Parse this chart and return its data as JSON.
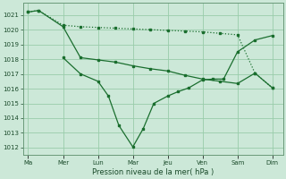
{
  "xlabel": "Pression niveau de la mer( hPa )",
  "bg_color": "#cce8d8",
  "grid_color": "#99ccaa",
  "line_color": "#1a6e2e",
  "ylim": [
    1011.5,
    1021.8
  ],
  "yticks": [
    1012,
    1013,
    1014,
    1015,
    1016,
    1017,
    1018,
    1019,
    1020,
    1021
  ],
  "xtick_labels": [
    "Ma",
    "Mer",
    "Lun",
    "Mar",
    "Jeu",
    "Ven",
    "Sam",
    "Dim"
  ],
  "xtick_positions": [
    0,
    1,
    2,
    3,
    4,
    5,
    6,
    7
  ],
  "xlim": [
    -0.15,
    7.3
  ],
  "line1_x": [
    0,
    0.3,
    1,
    1.5,
    2,
    2.5,
    3,
    3.5,
    4,
    4.5,
    5,
    5.5,
    6,
    6.5,
    7
  ],
  "line1_y": [
    1021.2,
    1021.3,
    1020.3,
    1020.2,
    1020.15,
    1020.1,
    1020.05,
    1020.0,
    1019.95,
    1019.9,
    1019.85,
    1019.75,
    1019.65,
    1017.05,
    1016.05
  ],
  "line2_x": [
    0,
    0.3,
    1,
    1.5,
    2,
    2.5,
    3,
    3.5,
    4,
    4.5,
    5,
    5.5,
    6,
    6.5,
    7
  ],
  "line2_y": [
    1021.2,
    1021.3,
    1020.2,
    1018.1,
    1017.95,
    1017.8,
    1017.55,
    1017.35,
    1017.2,
    1016.9,
    1016.65,
    1016.5,
    1016.35,
    1017.05,
    1016.05
  ],
  "line3_x": [
    1,
    1.5,
    2,
    2.3,
    2.6,
    3,
    3.3,
    3.6,
    4,
    4.3,
    4.6,
    5,
    5.3,
    5.6,
    6,
    6.5,
    7
  ],
  "line3_y": [
    1018.1,
    1017.0,
    1016.5,
    1015.5,
    1013.5,
    1012.05,
    1013.3,
    1015.0,
    1015.5,
    1015.8,
    1016.05,
    1016.6,
    1016.65,
    1016.65,
    1018.5,
    1019.3,
    1019.6
  ]
}
